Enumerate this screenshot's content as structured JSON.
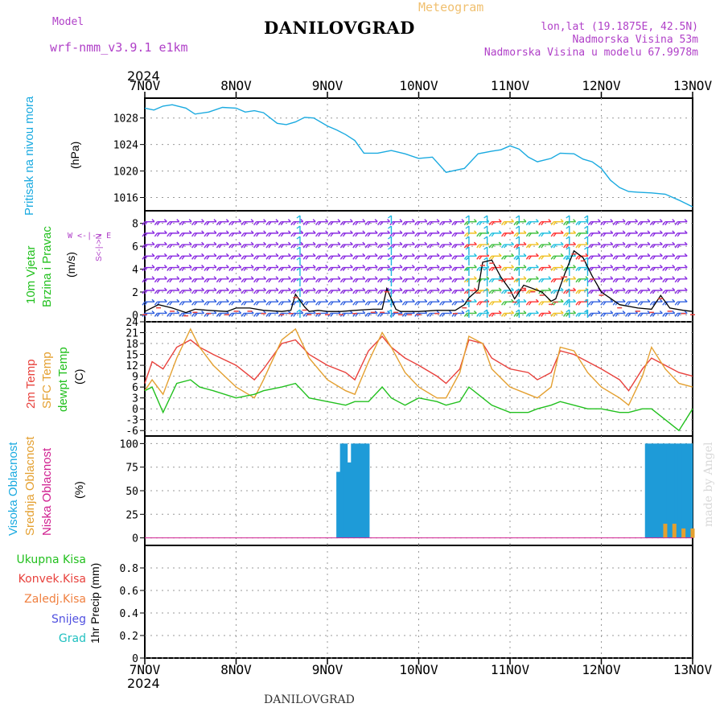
{
  "header": {
    "model_label": "Model",
    "model_name": "wrf-nmm_v3.9.1  e1km",
    "title": "DANILOVGRAD",
    "meteogram_label": "Meteogram",
    "coords": "lon,lat (19.1875E, 42.5N)",
    "elevation": "Nadmorska Visina 53m",
    "model_elevation": "Nadmorska Visina u modelu 67.9978m",
    "year_top": "2024",
    "year_bottom": "2024",
    "footer_title": "DANILOVGRAD",
    "watermark": "made by Angel"
  },
  "colors": {
    "pressure": "#1aaae0",
    "temp2m": "#e8413c",
    "sfc_temp": "#e4a030",
    "dewpoint": "#22c01e",
    "high_cloud": "#1e9bd8",
    "mid_cloud": "#e4a030",
    "low_cloud": "#d02090",
    "wind_arrows": "#8a2be2",
    "header_purple": "#b040c8"
  },
  "x_axis": {
    "ticks": [
      "7NOV",
      "8NOV",
      "9NOV",
      "10NOV",
      "11NOV",
      "12NOV",
      "13NOV"
    ]
  },
  "panel_labels": {
    "pressure": {
      "name": "Pritisak na nivou mora",
      "unit": "(hPa)"
    },
    "wind": {
      "name1": "10m Vjetar",
      "name2": "Brzina i Pravac",
      "unit": "(m/s)",
      "compass": "W <-|-> E",
      "compass2": "S<-|->N"
    },
    "temp": {
      "l1": "2m Temp",
      "l2": "SFC Temp",
      "l3": "dewpt Temp",
      "unit": "(C)"
    },
    "cloud": {
      "l1": "Visoka Oblacnost",
      "l2": "Srednja Oblacnost",
      "l3": "Niska Oblacnost",
      "unit": "(%)"
    },
    "precip": {
      "unit": "1hr Precip (mm)",
      "legend": [
        "Ukupna Kisa",
        "Konvek.Kisa",
        "Zaledj.Kisa",
        "Snijeg",
        "Grad"
      ]
    }
  },
  "chart_data": [
    {
      "type": "line",
      "panel": "pressure",
      "ylabel": "Pritisak na nivou mora (hPa)",
      "ylim": [
        1014,
        1031
      ],
      "yticks": [
        1016,
        1020,
        1024,
        1028
      ],
      "grid": true,
      "series": [
        {
          "name": "Pritisak na nivou mora",
          "x": [
            0,
            0.1,
            0.2,
            0.3,
            0.45,
            0.55,
            0.7,
            0.85,
            1.0,
            1.1,
            1.2,
            1.3,
            1.45,
            1.55,
            1.65,
            1.75,
            1.85,
            2.0,
            2.1,
            2.2,
            2.3,
            2.4,
            2.55,
            2.7,
            2.85,
            3.0,
            3.15,
            3.3,
            3.5,
            3.65,
            3.8,
            3.9,
            4.0,
            4.1,
            4.2,
            4.3,
            4.45,
            4.55,
            4.7,
            4.8,
            4.9,
            5.0,
            5.1,
            5.2,
            5.3,
            5.4,
            5.55,
            5.7,
            5.85,
            6.0
          ],
          "y": [
            1029.5,
            1029.2,
            1029.8,
            1030.0,
            1029.5,
            1028.6,
            1028.9,
            1029.6,
            1029.5,
            1028.9,
            1029.1,
            1028.8,
            1027.2,
            1027.0,
            1027.4,
            1028.1,
            1028.0,
            1026.8,
            1026.2,
            1025.5,
            1024.6,
            1022.7,
            1022.7,
            1023.1,
            1022.6,
            1021.9,
            1022.1,
            1019.8,
            1020.4,
            1022.6,
            1023.0,
            1023.2,
            1023.8,
            1023.3,
            1022.1,
            1021.4,
            1021.9,
            1022.7,
            1022.6,
            1021.8,
            1021.4,
            1020.4,
            1018.6,
            1017.5,
            1016.9,
            1016.8,
            1016.7,
            1016.5,
            1015.6,
            1014.6
          ]
        }
      ]
    },
    {
      "type": "barbs",
      "panel": "wind",
      "ylabel": "10m Vjetar Brzina i Pravac (m/s)",
      "ylim": [
        -0.6,
        9.1
      ],
      "yticks": [
        0,
        2,
        4,
        6,
        8
      ],
      "grid": true,
      "series": [
        {
          "name": "10m wind speed",
          "x": [
            0,
            0.15,
            0.3,
            0.45,
            0.55,
            0.7,
            0.9,
            1.0,
            1.15,
            1.3,
            1.5,
            1.6,
            1.65,
            1.75,
            1.8,
            1.9,
            2.0,
            2.15,
            2.3,
            2.5,
            2.6,
            2.65,
            2.75,
            2.8,
            2.9,
            3.0,
            3.2,
            3.4,
            3.5,
            3.55,
            3.65,
            3.7,
            3.8,
            3.9,
            4.0,
            4.05,
            4.15,
            4.25,
            4.35,
            4.45,
            4.5,
            4.6,
            4.7,
            4.8,
            4.9,
            5.0,
            5.2,
            5.4,
            5.55,
            5.65,
            5.75,
            5.9,
            6.0
          ],
          "y": [
            0.3,
            0.9,
            0.6,
            0.2,
            0.5,
            0.4,
            0.3,
            0.6,
            0.6,
            0.4,
            0.3,
            0.4,
            1.8,
            0.7,
            0.3,
            0.4,
            0.3,
            0.3,
            0.4,
            0.5,
            0.5,
            2.3,
            0.5,
            0.3,
            0.3,
            0.3,
            0.4,
            0.4,
            0.9,
            1.5,
            2.2,
            4.6,
            4.8,
            3.3,
            2.2,
            1.4,
            2.6,
            2.3,
            2.0,
            1.2,
            1.4,
            3.6,
            5.6,
            5.0,
            3.4,
            2.0,
            0.9,
            0.6,
            0.5,
            1.7,
            0.6,
            0.4,
            0.3
          ]
        }
      ]
    },
    {
      "type": "line",
      "panel": "temperature",
      "ylabel": "Temp (C)",
      "ylim": [
        -7.5,
        24
      ],
      "yticks": [
        24,
        21,
        18,
        15,
        12,
        9,
        6,
        3,
        0,
        -3,
        -6
      ],
      "grid": true,
      "series": [
        {
          "name": "2m Temp",
          "x": [
            0,
            0.08,
            0.2,
            0.35,
            0.5,
            0.6,
            0.75,
            1.0,
            1.2,
            1.3,
            1.5,
            1.65,
            1.8,
            2.0,
            2.2,
            2.3,
            2.45,
            2.6,
            2.7,
            2.85,
            3.0,
            3.2,
            3.3,
            3.45,
            3.55,
            3.7,
            3.8,
            4.0,
            4.2,
            4.3,
            4.45,
            4.55,
            4.7,
            4.85,
            5.0,
            5.2,
            5.3,
            5.45,
            5.55,
            5.7,
            5.85,
            6.0
          ],
          "y": [
            7,
            13,
            11,
            17,
            19,
            17,
            15,
            12,
            8,
            11,
            18,
            19,
            15,
            12,
            10,
            8,
            16,
            20,
            17,
            14,
            12,
            9,
            7,
            11,
            19,
            18,
            14,
            11,
            10,
            8,
            10,
            16,
            15,
            13,
            11,
            8,
            5,
            11,
            14,
            12,
            10,
            9
          ]
        },
        {
          "name": "SFC Temp",
          "x": [
            0,
            0.08,
            0.2,
            0.35,
            0.5,
            0.6,
            0.75,
            1.0,
            1.2,
            1.3,
            1.5,
            1.65,
            1.8,
            2.0,
            2.2,
            2.3,
            2.45,
            2.6,
            2.7,
            2.85,
            3.0,
            3.2,
            3.3,
            3.45,
            3.55,
            3.7,
            3.8,
            4.0,
            4.2,
            4.3,
            4.45,
            4.55,
            4.7,
            4.85,
            5.0,
            5.2,
            5.3,
            5.45,
            5.55,
            5.7,
            5.85,
            6.0
          ],
          "y": [
            5,
            8,
            4,
            14,
            22,
            17,
            12,
            6,
            3,
            8,
            19,
            22,
            14,
            8,
            5,
            4,
            13,
            21,
            17,
            10,
            6,
            3,
            3,
            10,
            20,
            18,
            11,
            6,
            4,
            3,
            6,
            17,
            16,
            10,
            6,
            3,
            1,
            9,
            17,
            11,
            7,
            6
          ]
        },
        {
          "name": "dewpt Temp",
          "x": [
            0,
            0.08,
            0.2,
            0.35,
            0.5,
            0.6,
            0.75,
            1.0,
            1.2,
            1.3,
            1.5,
            1.65,
            1.8,
            2.0,
            2.2,
            2.3,
            2.45,
            2.6,
            2.7,
            2.85,
            3.0,
            3.2,
            3.3,
            3.45,
            3.55,
            3.7,
            3.8,
            4.0,
            4.2,
            4.3,
            4.45,
            4.55,
            4.7,
            4.85,
            5.0,
            5.2,
            5.3,
            5.45,
            5.55,
            5.7,
            5.85,
            6.0
          ],
          "y": [
            5,
            6,
            -1,
            7,
            8,
            6,
            5,
            3,
            4,
            5,
            6,
            7,
            3,
            2,
            1,
            2,
            2,
            6,
            3,
            1,
            3,
            2,
            1,
            2,
            6,
            3,
            1,
            -1,
            -1,
            0,
            1,
            2,
            1,
            0,
            0,
            -1,
            -1,
            0,
            0,
            -3,
            -6,
            0
          ]
        }
      ]
    },
    {
      "type": "bar",
      "panel": "cloud",
      "ylabel": "Oblacnost (%)",
      "ylim": [
        -8,
        108
      ],
      "yticks": [
        0,
        25,
        50,
        75,
        100
      ],
      "grid": true,
      "series": [
        {
          "name": "Visoka Oblacnost",
          "x": [
            2.12,
            2.16,
            2.2,
            2.24,
            2.28,
            2.32,
            2.36,
            2.4,
            2.44,
            5.5,
            5.54,
            5.58,
            5.62,
            5.66,
            5.7,
            5.74,
            5.78,
            5.82,
            5.86,
            5.9,
            5.94,
            5.98
          ],
          "y": [
            70,
            100,
            100,
            80,
            100,
            100,
            100,
            100,
            100,
            100,
            100,
            100,
            100,
            100,
            100,
            100,
            100,
            100,
            100,
            100,
            100,
            100
          ]
        },
        {
          "name": "Srednja Oblacnost",
          "x": [
            5.7,
            5.8,
            5.9,
            6.0
          ],
          "y": [
            15,
            15,
            10,
            10
          ]
        },
        {
          "name": "Niska Oblacnost",
          "x": [
            0,
            6.0
          ],
          "y": [
            0,
            0
          ]
        }
      ]
    },
    {
      "type": "bar",
      "panel": "precipitation",
      "ylabel": "1hr Precip (mm)",
      "ylim": [
        0,
        1.0
      ],
      "yticks": [
        0,
        0.2,
        0.4,
        0.6,
        0.8
      ],
      "grid": true,
      "series": [
        {
          "name": "Ukupna Kisa",
          "x": [],
          "y": []
        },
        {
          "name": "Konvek.Kisa",
          "x": [],
          "y": []
        },
        {
          "name": "Zaledj.Kisa",
          "x": [],
          "y": []
        },
        {
          "name": "Snijeg",
          "x": [],
          "y": []
        },
        {
          "name": "Grad",
          "x": [],
          "y": []
        }
      ]
    }
  ]
}
